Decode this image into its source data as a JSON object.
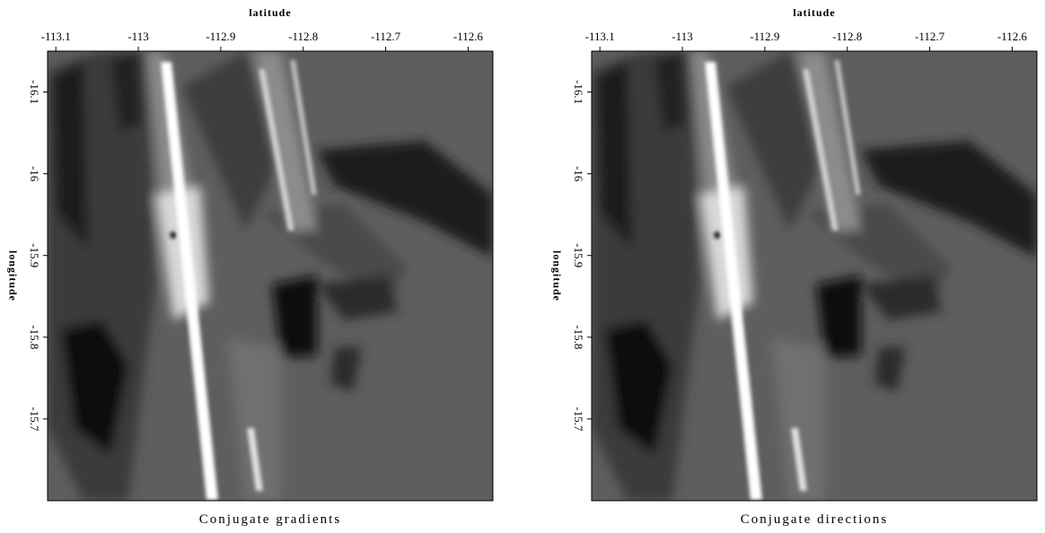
{
  "chart_data": [
    {
      "type": "image",
      "title": "Conjugate gradients",
      "xlabel": "latitude",
      "ylabel": "longitude",
      "xlim": [
        -113.11,
        -112.57
      ],
      "xticks": [
        -113.1,
        -113,
        -112.9,
        -112.8,
        -112.7,
        -112.6
      ],
      "ylim": [
        -16.15,
        -15.6
      ],
      "yticks": [
        -16.1,
        -16,
        -15.9,
        -15.8,
        -15.7
      ]
    },
    {
      "type": "image",
      "title": "Conjugate directions",
      "xlabel": "latitude",
      "ylabel": "longitude",
      "xlim": [
        -113.11,
        -112.57
      ],
      "xticks": [
        -113.1,
        -113,
        -112.9,
        -112.8,
        -112.7,
        -112.6
      ],
      "ylim": [
        -16.15,
        -15.6
      ],
      "yticks": [
        -16.1,
        -16,
        -15.9,
        -15.8,
        -15.7
      ]
    }
  ]
}
